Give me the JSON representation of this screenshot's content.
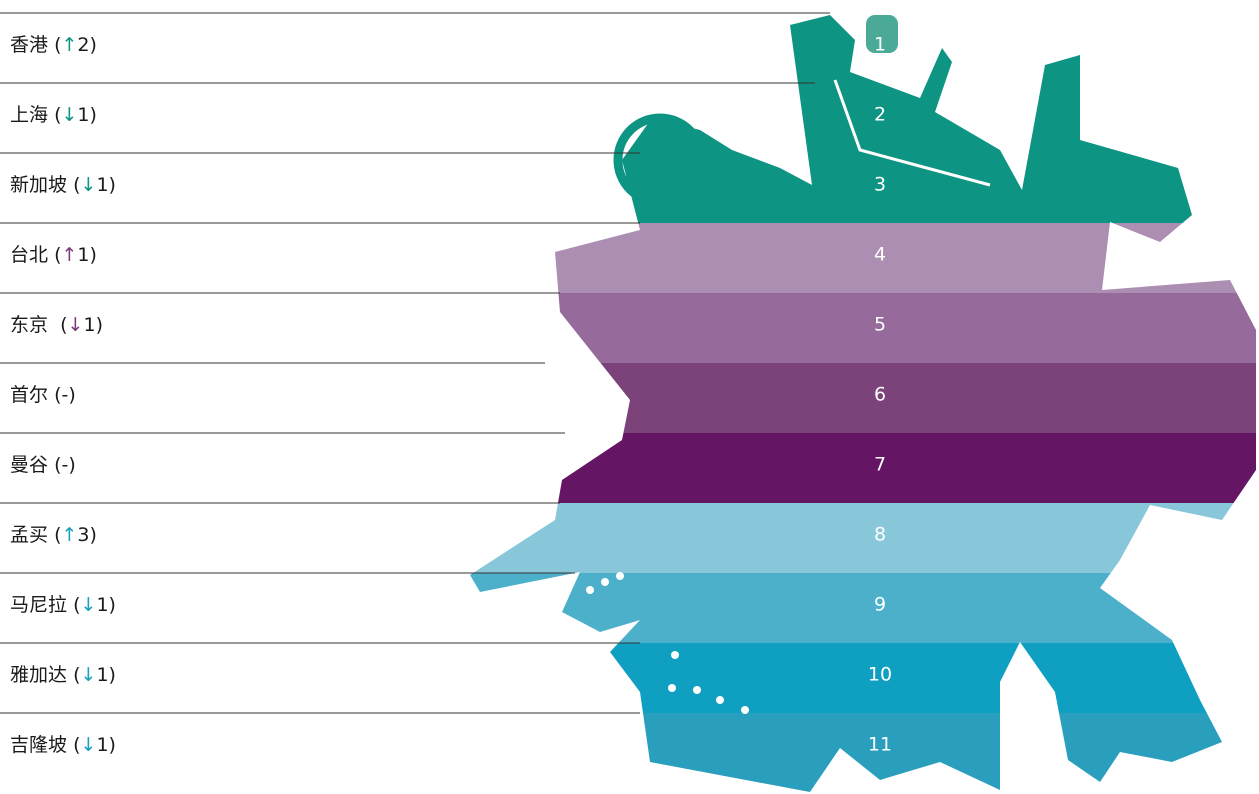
{
  "ranking": {
    "rows": [
      {
        "label": "香港 (↑2)",
        "rank": "1",
        "arrow_color": "#0e9482",
        "band_color": "#0e9482"
      },
      {
        "label": "上海 (↓1)",
        "rank": "2",
        "arrow_color": "#0e9482",
        "band_color": "#0e9482"
      },
      {
        "label": "新加坡 (↓1)",
        "rank": "3",
        "arrow_color": "#0e9482",
        "band_color": "#0e9482"
      },
      {
        "label": "台北 (↑1)",
        "rank": "4",
        "arrow_color": "#7d3a7e",
        "band_color": "#ad8eb3"
      },
      {
        "label": "东京  (↓1)",
        "rank": "5",
        "arrow_color": "#7d3a7e",
        "band_color": "#966a9b"
      },
      {
        "label": "首尔 (-)",
        "rank": "6",
        "arrow_color": "#7d3a7e",
        "band_color": "#7b4379"
      },
      {
        "label": "曼谷 (-)",
        "rank": "7",
        "arrow_color": "#7d3a7e",
        "band_color": "#641563"
      },
      {
        "label": "孟买 (↑3)",
        "rank": "8",
        "arrow_color": "#1aa0bf",
        "band_color": "#88c7da"
      },
      {
        "label": "马尼拉 (↓1)",
        "rank": "9",
        "arrow_color": "#1aa0bf",
        "band_color": "#4cb0cb"
      },
      {
        "label": "雅加达 (↓1)",
        "rank": "10",
        "arrow_color": "#1aa0bf",
        "band_color": "#0e9fc1"
      },
      {
        "label": "吉隆坡 (↓1)",
        "rank": "11",
        "arrow_color": "#1aa0bf",
        "band_color": "#2a9fbd"
      }
    ]
  }
}
